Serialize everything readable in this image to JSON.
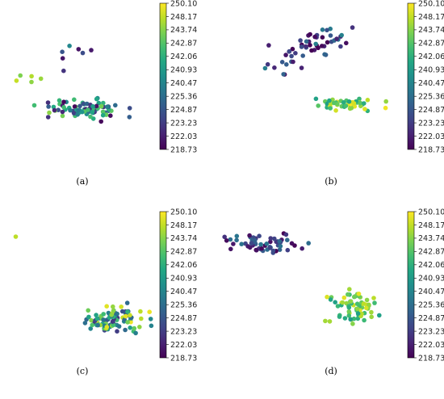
{
  "chart_data": [
    {
      "type": "scatter",
      "panel": "a",
      "caption": "(a)",
      "colorbar": {
        "colormap": "viridis",
        "ticks": [
          "250.10",
          "248.17",
          "243.74",
          "242.87",
          "242.06",
          "240.93",
          "240.47",
          "225.36",
          "224.87",
          "223.23",
          "222.03",
          "218.73"
        ]
      },
      "clusters": [
        {
          "cx": 0.52,
          "cy": 0.66,
          "rx": 0.35,
          "ry": 0.08,
          "n": 85,
          "vmin": 0.0,
          "vmax": 0.85
        },
        {
          "cx": 0.2,
          "cy": 0.49,
          "rx": 0.2,
          "ry": 0.1,
          "n": 5,
          "vmin": 0.8,
          "vmax": 1.0
        },
        {
          "cx": 0.47,
          "cy": 0.38,
          "rx": 0.3,
          "ry": 0.25,
          "n": 7,
          "vmin": 0.05,
          "vmax": 0.55
        }
      ]
    },
    {
      "type": "scatter",
      "panel": "b",
      "caption": "(b)",
      "colorbar": {
        "colormap": "viridis",
        "ticks": [
          "250.10",
          "248.17",
          "243.74",
          "242.87",
          "242.06",
          "240.93",
          "240.47",
          "225.36",
          "224.87",
          "223.23",
          "222.03",
          "218.73"
        ]
      },
      "clusters": [
        {
          "cx": 0.5,
          "cy": 0.3,
          "rx": 0.35,
          "ry": 0.15,
          "n": 55,
          "vmin": 0.0,
          "vmax": 0.45,
          "tilt": -0.45
        },
        {
          "cx": 0.75,
          "cy": 0.63,
          "rx": 0.25,
          "ry": 0.05,
          "n": 55,
          "vmin": 0.55,
          "vmax": 1.0
        }
      ]
    },
    {
      "type": "scatter",
      "panel": "c",
      "caption": "(c)",
      "colorbar": {
        "colormap": "viridis",
        "ticks": [
          "250.10",
          "248.17",
          "243.74",
          "242.87",
          "242.06",
          "240.93",
          "240.47",
          "225.36",
          "224.87",
          "223.23",
          "222.03",
          "218.73"
        ]
      },
      "clusters": [
        {
          "cx": 0.72,
          "cy": 0.66,
          "rx": 0.28,
          "ry": 0.12,
          "n": 95,
          "vmin": 0.15,
          "vmax": 1.0
        },
        {
          "cx": 0.1,
          "cy": 0.16,
          "rx": 0.01,
          "ry": 0.01,
          "n": 1,
          "vmin": 0.88,
          "vmax": 0.9
        }
      ]
    },
    {
      "type": "scatter",
      "panel": "d",
      "caption": "(d)",
      "colorbar": {
        "colormap": "viridis",
        "ticks": [
          "250.10",
          "248.17",
          "243.74",
          "242.87",
          "242.06",
          "240.93",
          "240.47",
          "225.36",
          "224.87",
          "223.23",
          "222.03",
          "218.73"
        ]
      },
      "clusters": [
        {
          "cx": 0.27,
          "cy": 0.2,
          "rx": 0.33,
          "ry": 0.09,
          "n": 60,
          "vmin": 0.0,
          "vmax": 0.4
        },
        {
          "cx": 0.78,
          "cy": 0.58,
          "rx": 0.22,
          "ry": 0.13,
          "n": 65,
          "vmin": 0.55,
          "vmax": 1.0
        }
      ]
    }
  ]
}
